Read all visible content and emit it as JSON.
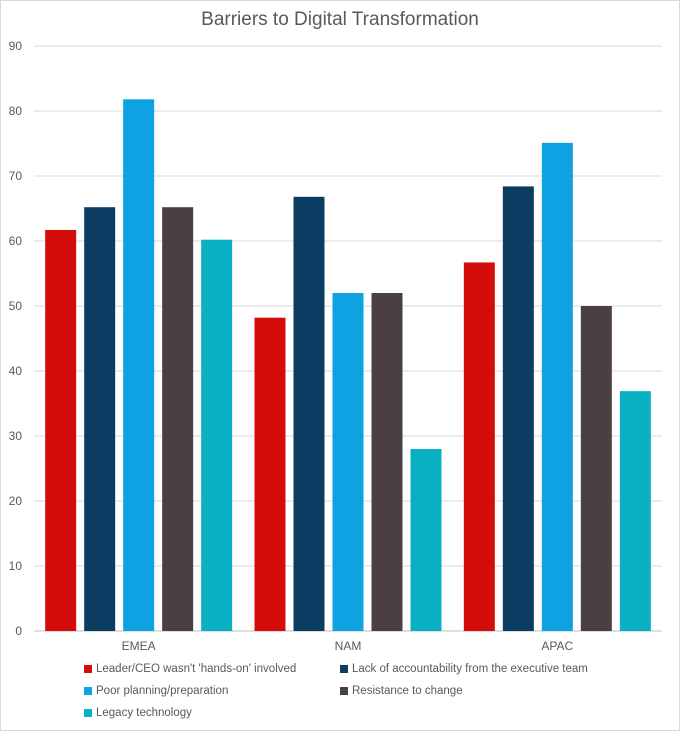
{
  "chart_data": {
    "type": "bar",
    "title": "Barriers to Digital Transformation",
    "categories": [
      "EMEA",
      "NAM",
      "APAC"
    ],
    "ylim": [
      0,
      90
    ],
    "yticks": [
      0,
      10,
      20,
      30,
      40,
      50,
      60,
      70,
      80,
      90
    ],
    "grid": true,
    "legend_position": "bottom",
    "series": [
      {
        "name": "Leader/CEO wasn't 'hands-on' involved",
        "color": "#d40c0c",
        "values": [
          61.7,
          48.2,
          56.7
        ]
      },
      {
        "name": "Lack of accountability from the executive team",
        "color": "#0b3c61",
        "values": [
          65.2,
          66.8,
          68.4
        ]
      },
      {
        "name": "Poor planning/preparation",
        "color": "#0ea2e2",
        "values": [
          81.8,
          52.0,
          75.1
        ]
      },
      {
        "name": "Resistance to change",
        "color": "#4a3f45",
        "values": [
          65.2,
          52.0,
          50.0
        ]
      },
      {
        "name": "Legacy technology",
        "color": "#09b0c3",
        "values": [
          60.2,
          28.0,
          36.9
        ]
      }
    ]
  }
}
